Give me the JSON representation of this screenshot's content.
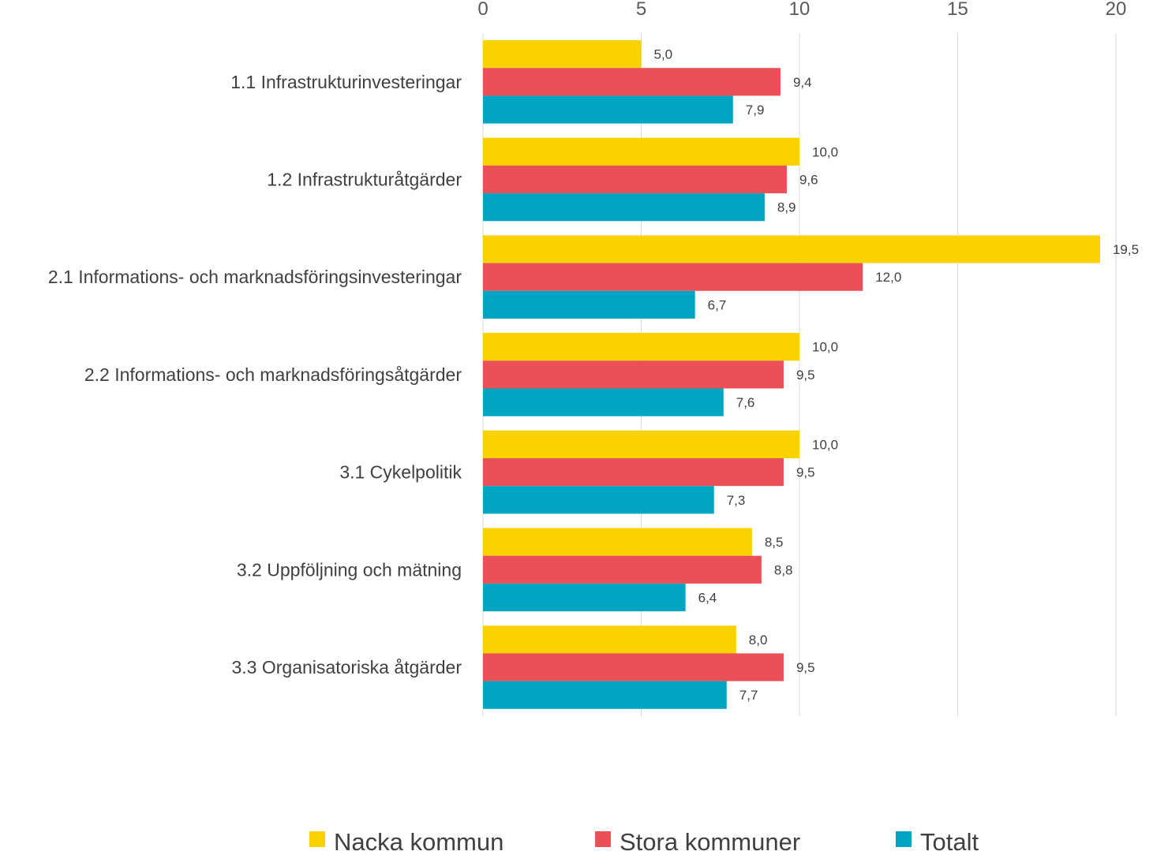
{
  "chart_data": {
    "type": "bar",
    "orientation": "horizontal",
    "title": "",
    "xlabel": "",
    "ylabel": "",
    "xlim": [
      0,
      20
    ],
    "xticks": [
      "0",
      "5",
      "10",
      "15",
      "20"
    ],
    "axis_position": "top",
    "grid": true,
    "legend_position": "bottom",
    "categories": [
      "1.1 Infrastrukturinvesteringar",
      "1.2 Infrastrukturåtgärder",
      "2.1 Informations- och marknadsföringsinvesteringar",
      "2.2 Informations- och marknadsföringsåtgärder",
      "3.1 Cykelpolitik",
      "3.2 Uppföljning och mätning",
      "3.3 Organisatoriska åtgärder"
    ],
    "series": [
      {
        "name": "Nacka kommun",
        "color": "#F9D200",
        "values": [
          5.0,
          10.0,
          19.5,
          10.0,
          10.0,
          8.5,
          8.0
        ],
        "labels": [
          "5,0",
          "10,0",
          "19,5",
          "10,0",
          "10,0",
          "8,5",
          "8,0"
        ]
      },
      {
        "name": "Stora kommuner",
        "color": "#EB4F57",
        "values": [
          9.4,
          9.6,
          12.0,
          9.5,
          9.5,
          8.8,
          9.5
        ],
        "labels": [
          "9,4",
          "9,6",
          "12,0",
          "9,5",
          "9,5",
          "8,8",
          "9,5"
        ]
      },
      {
        "name": "Totalt",
        "color": "#00A5C4",
        "values": [
          7.9,
          8.9,
          6.7,
          7.6,
          7.3,
          6.4,
          7.7
        ],
        "labels": [
          "7,9",
          "8,9",
          "6,7",
          "7,6",
          "7,3",
          "6,4",
          "7,7"
        ]
      }
    ]
  }
}
